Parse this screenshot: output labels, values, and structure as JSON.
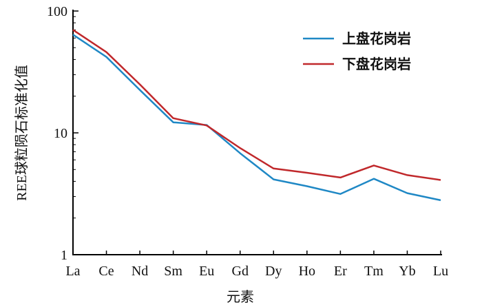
{
  "chart_data": {
    "type": "line",
    "title": "",
    "xlabel": "元素",
    "ylabel": "REE球粒陨石标准化值",
    "y_scale": "log",
    "ylim": [
      1,
      100
    ],
    "y_ticks": [
      "1",
      "10",
      "100"
    ],
    "categories": [
      "La",
      "Ce",
      "Nd",
      "Sm",
      "Eu",
      "Gd",
      "Dy",
      "Ho",
      "Er",
      "Tm",
      "Yb",
      "Lu"
    ],
    "series": [
      {
        "name": "上盘花岗岩",
        "color": "#1f88c5",
        "values": [
          64,
          42,
          22.5,
          12.2,
          11.6,
          6.8,
          4.15,
          3.65,
          3.15,
          4.2,
          3.2,
          2.8
        ]
      },
      {
        "name": "下盘花岗岩",
        "color": "#c0282b",
        "values": [
          70,
          46,
          25,
          13.2,
          11.5,
          7.5,
          5.1,
          4.7,
          4.3,
          5.4,
          4.5,
          4.1
        ]
      }
    ],
    "legend_position": "top-right",
    "grid": false
  }
}
